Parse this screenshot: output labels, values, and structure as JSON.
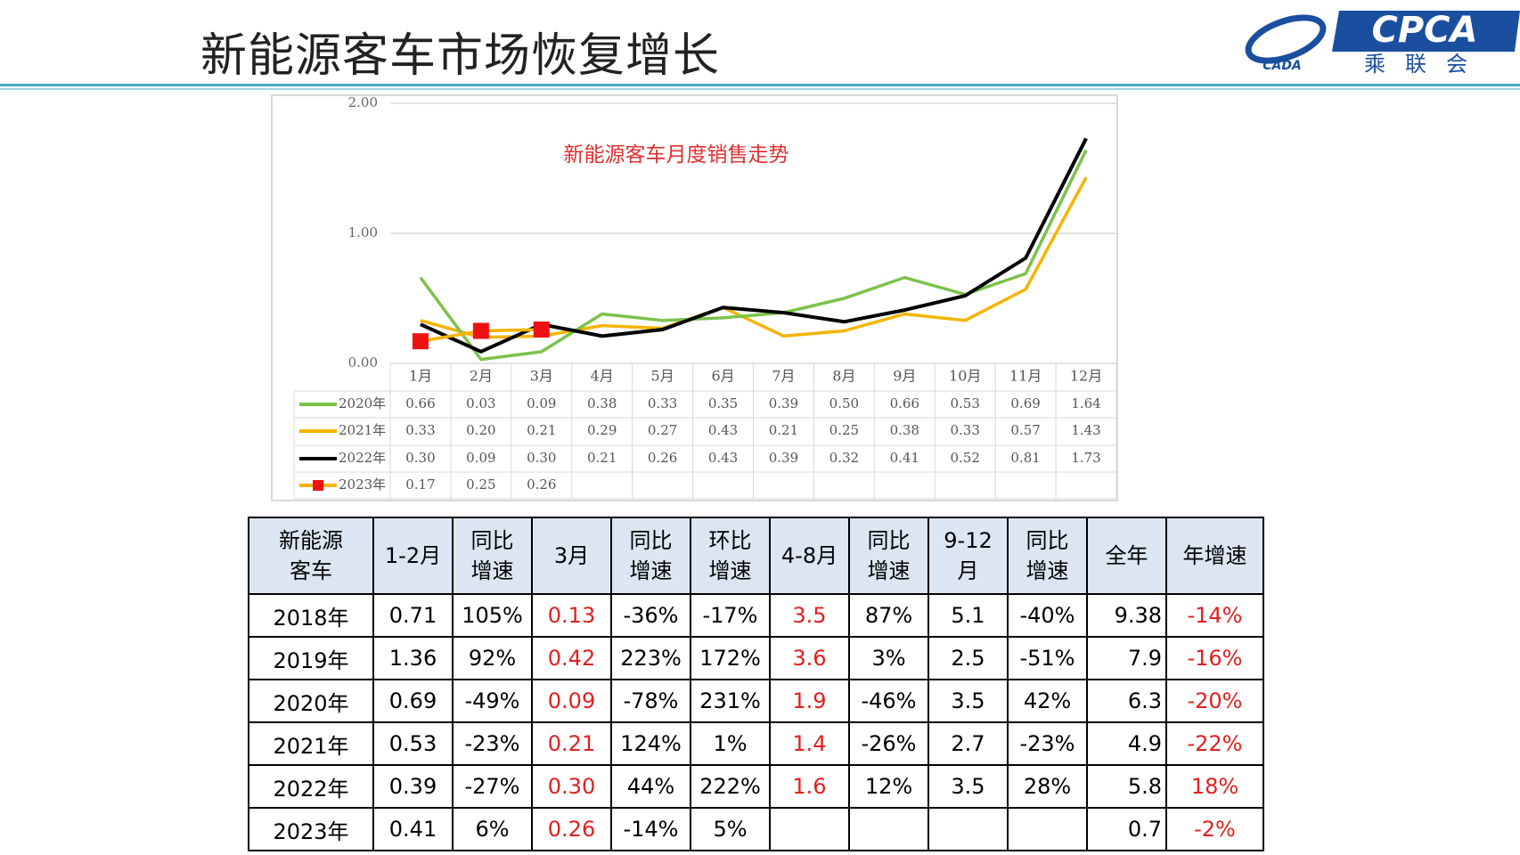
{
  "header": {
    "title": "新能源客车市场恢复增长",
    "logo": "CPCA",
    "logo_small": "CADA",
    "logo_sub": "乘联会"
  },
  "chart_data": {
    "type": "line",
    "title": "新能源客车月度销售走势",
    "categories": [
      "1月",
      "2月",
      "3月",
      "4月",
      "5月",
      "6月",
      "7月",
      "8月",
      "9月",
      "10月",
      "11月",
      "12月"
    ],
    "ylim": [
      0,
      2
    ],
    "yticks": [
      {
        "value": 0,
        "label": "0.00"
      },
      {
        "value": 1,
        "label": "1.00"
      },
      {
        "value": 2,
        "label": "2.00"
      }
    ],
    "grid": true,
    "series": [
      {
        "name": "2020年",
        "color": "#7cc24a",
        "values": [
          0.66,
          0.03,
          0.09,
          0.38,
          0.33,
          0.35,
          0.39,
          0.5,
          0.66,
          0.53,
          0.69,
          1.64
        ],
        "value_labels": [
          "0.66",
          "0.03",
          "0.09",
          "0.38",
          "0.33",
          "0.35",
          "0.39",
          "0.50",
          "0.66",
          "0.53",
          "0.69",
          "1.64"
        ]
      },
      {
        "name": "2021年",
        "color": "#f5b400",
        "values": [
          0.33,
          0.2,
          0.21,
          0.29,
          0.27,
          0.43,
          0.21,
          0.25,
          0.38,
          0.33,
          0.57,
          1.43
        ],
        "value_labels": [
          "0.33",
          "0.20",
          "0.21",
          "0.29",
          "0.27",
          "0.43",
          "0.21",
          "0.25",
          "0.38",
          "0.33",
          "0.57",
          "1.43"
        ]
      },
      {
        "name": "2022年",
        "color": "#000000",
        "values": [
          0.3,
          0.09,
          0.3,
          0.21,
          0.26,
          0.43,
          0.39,
          0.32,
          0.41,
          0.52,
          0.81,
          1.73
        ],
        "value_labels": [
          "0.30",
          "0.09",
          "0.30",
          "0.21",
          "0.26",
          "0.43",
          "0.39",
          "0.32",
          "0.41",
          "0.52",
          "0.81",
          "1.73"
        ]
      },
      {
        "name": "2023年",
        "color": "#ee1111",
        "line_color": "#f5b400",
        "marker": "square",
        "values": [
          0.17,
          0.25,
          0.26,
          null,
          null,
          null,
          null,
          null,
          null,
          null,
          null,
          null
        ],
        "value_labels": [
          "0.17",
          "0.25",
          "0.26",
          null,
          null,
          null,
          null,
          null,
          null,
          null,
          null,
          null
        ]
      }
    ]
  },
  "table": {
    "header": [
      "新能源\n客车",
      "1-2月",
      "同比\n增速",
      "3月",
      "同比\n增速",
      "环比\n增速",
      "4-8月",
      "同比\n增速",
      "9-12\n月",
      "同比\n增速",
      "全年",
      "年增速"
    ],
    "rows": [
      [
        "2018年",
        "0.71",
        "105%",
        "0.13",
        "-36%",
        "-17%",
        "3.5",
        "87%",
        "5.1",
        "-40%",
        "9.38",
        "-14%"
      ],
      [
        "2019年",
        "1.36",
        "92%",
        "0.42",
        "223%",
        "172%",
        "3.6",
        "3%",
        "2.5",
        "-51%",
        "7.9",
        "-16%"
      ],
      [
        "2020年",
        "0.69",
        "-49%",
        "0.09",
        "-78%",
        "231%",
        "1.9",
        "-46%",
        "3.5",
        "42%",
        "6.3",
        "-20%"
      ],
      [
        "2021年",
        "0.53",
        "-23%",
        "0.21",
        "124%",
        "1%",
        "1.4",
        "-26%",
        "2.7",
        "-23%",
        "4.9",
        "-22%"
      ],
      [
        "2022年",
        "0.39",
        "-27%",
        "0.30",
        "44%",
        "222%",
        "1.6",
        "12%",
        "3.5",
        "28%",
        "5.8",
        "18%"
      ],
      [
        "2023年",
        "0.41",
        "6%",
        "0.26",
        "-14%",
        "5%",
        null,
        null,
        null,
        null,
        "0.7",
        "-2%"
      ]
    ]
  }
}
